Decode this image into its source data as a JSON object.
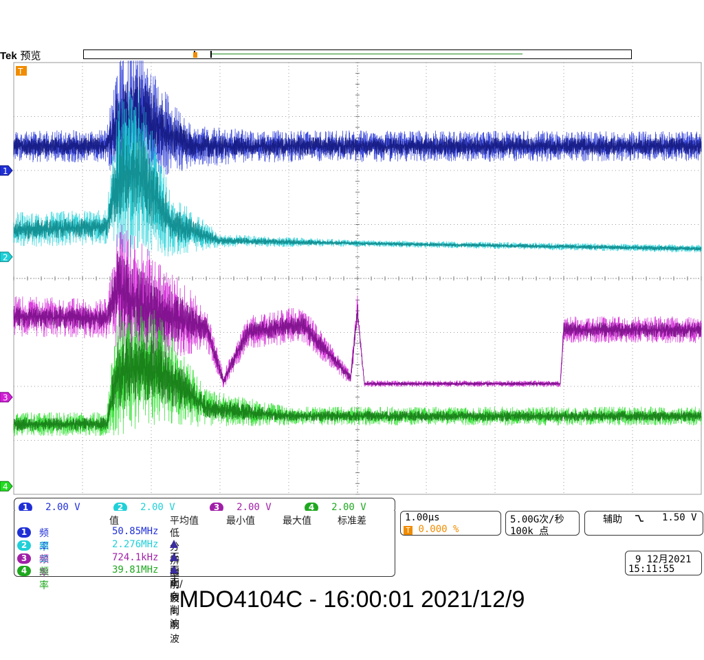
{
  "header": {
    "brand": "Tek",
    "mode": "预览"
  },
  "chart_data": {
    "type": "line",
    "title": "",
    "xlabel": "",
    "ylabel": "",
    "grid": true,
    "horizontal_divisions": 10,
    "vertical_divisions": 8,
    "time_per_div_us": 1.0,
    "trigger_marker": "T",
    "series": [
      {
        "channel": "1",
        "color": "#1f2fd6",
        "dark_color": "#141a80",
        "volts_per_div": 2.0,
        "ground_div_from_top": 2.0,
        "envelope": [
          {
            "t": 0.0,
            "center": 1.55,
            "amp": 0.6
          },
          {
            "t": 1.35,
            "center": 1.55,
            "amp": 0.6
          },
          {
            "t": 1.5,
            "center": 1.2,
            "amp": 2.4
          },
          {
            "t": 1.8,
            "center": 0.9,
            "amp": 2.7
          },
          {
            "t": 2.2,
            "center": 1.3,
            "amp": 1.6
          },
          {
            "t": 2.6,
            "center": 1.55,
            "amp": 0.8
          },
          {
            "t": 3.5,
            "center": 1.55,
            "amp": 0.6
          },
          {
            "t": 10.0,
            "center": 1.55,
            "amp": 0.55
          }
        ]
      },
      {
        "channel": "2",
        "color": "#1fd0d8",
        "dark_color": "#0e8a8c",
        "volts_per_div": 2.0,
        "ground_div_from_top": 3.6,
        "envelope": [
          {
            "t": 0.0,
            "center": 3.1,
            "amp": 0.65
          },
          {
            "t": 1.35,
            "center": 3.05,
            "amp": 0.65
          },
          {
            "t": 1.5,
            "center": 2.2,
            "amp": 3.0
          },
          {
            "t": 1.8,
            "center": 2.0,
            "amp": 3.2
          },
          {
            "t": 2.3,
            "center": 3.0,
            "amp": 1.2
          },
          {
            "t": 3.0,
            "center": 3.3,
            "amp": 0.25
          },
          {
            "t": 5.0,
            "center": 3.35,
            "amp": 0.12
          },
          {
            "t": 10.0,
            "center": 3.45,
            "amp": 0.15
          }
        ]
      },
      {
        "channel": "3",
        "color": "#d21fd6",
        "dark_color": "#7a0e88",
        "volts_per_div": 2.0,
        "ground_div_from_top": 6.2,
        "envelope": [
          {
            "t": 0.0,
            "center": 4.7,
            "amp": 0.75
          },
          {
            "t": 1.35,
            "center": 4.75,
            "amp": 0.75
          },
          {
            "t": 1.5,
            "center": 4.2,
            "amp": 2.6
          },
          {
            "t": 2.0,
            "center": 4.6,
            "amp": 2.2
          },
          {
            "t": 2.8,
            "center": 4.9,
            "amp": 0.8
          },
          {
            "t": 3.05,
            "center": 5.9,
            "amp": 0.3
          },
          {
            "t": 3.4,
            "center": 5.0,
            "amp": 0.6
          },
          {
            "t": 4.2,
            "center": 4.85,
            "amp": 0.7
          },
          {
            "t": 4.9,
            "center": 5.85,
            "amp": 0.25
          },
          {
            "t": 5.0,
            "center": 4.6,
            "amp": 0.6
          },
          {
            "t": 5.1,
            "center": 5.95,
            "amp": 0.12
          },
          {
            "t": 7.95,
            "center": 5.95,
            "amp": 0.12
          },
          {
            "t": 8.0,
            "center": 4.95,
            "amp": 0.5
          },
          {
            "t": 10.0,
            "center": 4.95,
            "amp": 0.5
          }
        ]
      },
      {
        "channel": "4",
        "color": "#22dd22",
        "dark_color": "#167a16",
        "volts_per_div": 2.0,
        "ground_div_from_top": 7.85,
        "envelope": [
          {
            "t": 0.0,
            "center": 6.7,
            "amp": 0.45
          },
          {
            "t": 1.35,
            "center": 6.7,
            "amp": 0.45
          },
          {
            "t": 1.5,
            "center": 5.8,
            "amp": 2.4
          },
          {
            "t": 2.0,
            "center": 5.6,
            "amp": 2.3
          },
          {
            "t": 2.8,
            "center": 6.4,
            "amp": 0.7
          },
          {
            "t": 4.0,
            "center": 6.55,
            "amp": 0.35
          },
          {
            "t": 10.0,
            "center": 6.55,
            "amp": 0.35
          }
        ]
      }
    ]
  },
  "channels": [
    {
      "id": "1",
      "scale": "2.00 V",
      "color": "#1f2fd6"
    },
    {
      "id": "2",
      "scale": "2.00 V",
      "color": "#1fd0d8"
    },
    {
      "id": "3",
      "scale": "2.00 V",
      "color": "#a01fa8"
    },
    {
      "id": "4",
      "scale": "2.00 V",
      "color": "#1fa81f"
    }
  ],
  "measurements": {
    "headers": [
      "值",
      "平均值",
      "最小值",
      "最大值",
      "标准差"
    ],
    "rows": [
      {
        "ch": "1",
        "label": "频率",
        "value": "50.85MHz",
        "note": "低分辨率",
        "note_icon": false,
        "color": "#1f2fd6"
      },
      {
        "ch": "2",
        "label": "频率",
        "value": "2.276MHz",
        "note": "正向削波",
        "note_icon": true,
        "color": "#1fd0d8"
      },
      {
        "ch": "3",
        "label": "频率",
        "value": "724.1kHz",
        "note": "正向/负向削波",
        "note_icon": true,
        "color": "#a01fa8"
      },
      {
        "ch": "4",
        "label": "频率",
        "value": "39.81MHz",
        "note": "正向削波",
        "note_icon": true,
        "color": "#1fa81f"
      }
    ]
  },
  "horizontal": {
    "scale": "1.00µs",
    "trigger_pos": "0.000 %"
  },
  "acquisition": {
    "rate": "5.00G次/秒",
    "points": "100k 点"
  },
  "trigger": {
    "source": "辅助",
    "slope_icon": "falling-edge-icon",
    "level": "1.50 V"
  },
  "datetime": {
    "date": "9 12月2021",
    "time": "15:11:55"
  },
  "caption": "MDO4104C - 16:00:01   2021/12/9"
}
